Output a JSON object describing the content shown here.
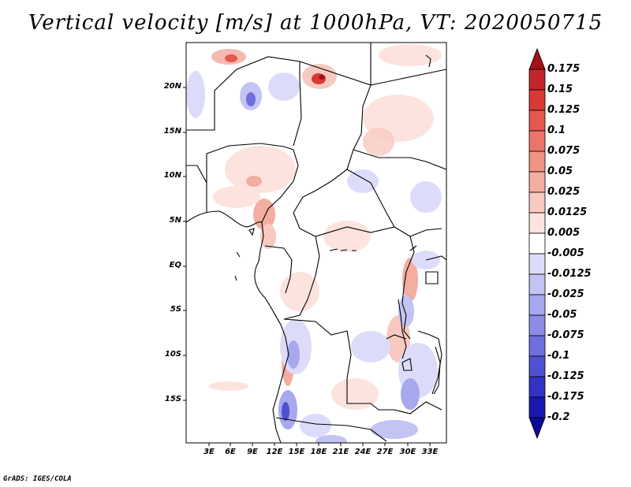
{
  "title": "Vertical velocity [m/s] at 1000hPa, VT: 2020050715",
  "credit": "GrADS: IGES/COLA",
  "lat_ticks": [
    "20N",
    "15N",
    "10N",
    "5N",
    "EQ",
    "5S",
    "10S",
    "15S"
  ],
  "lon_ticks": [
    "3E",
    "6E",
    "9E",
    "12E",
    "15E",
    "18E",
    "21E",
    "24E",
    "27E",
    "30E",
    "33E"
  ],
  "colorbar": {
    "labels": [
      "0.175",
      "0.15",
      "0.125",
      "0.1",
      "0.075",
      "0.05",
      "0.025",
      "0.0125",
      "0.005",
      "-0.005",
      "-0.0125",
      "-0.025",
      "-0.05",
      "-0.075",
      "-0.1",
      "-0.125",
      "-0.175",
      "-0.2"
    ],
    "colors": [
      "#a50f15",
      "#c0262a",
      "#d73a35",
      "#e3584f",
      "#eb7568",
      "#f09284",
      "#f4ada1",
      "#f8c9c0",
      "#fce3de",
      "#ffffff",
      "#dcdcfa",
      "#c3c3f4",
      "#a8a8ee",
      "#8c8ce6",
      "#6e6ede",
      "#5050d2",
      "#3232c4",
      "#1818b0",
      "#0a0a96"
    ]
  }
}
